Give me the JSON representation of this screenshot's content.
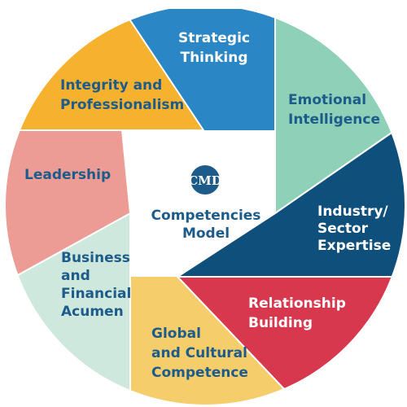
{
  "segments": [
    {
      "id": "strategic-thinking",
      "lines": [
        "Strategic",
        "Thinking"
      ],
      "color": "#2a86c4",
      "text_color": "#ffffff"
    },
    {
      "id": "emotional-intelligence",
      "lines": [
        "Emotional",
        "Intelligence"
      ],
      "color": "#8fd0b8",
      "text_color": "#1d5c8a"
    },
    {
      "id": "industry-sector-expertise",
      "lines": [
        "Industry/",
        "Sector",
        "Expertise"
      ],
      "color": "#0f4f7c",
      "text_color": "#ffffff"
    },
    {
      "id": "relationship-building",
      "lines": [
        "Relationship",
        "Building"
      ],
      "color": "#d7384e",
      "text_color": "#ffffff"
    },
    {
      "id": "global-cultural-competence",
      "lines": [
        "Global",
        "and Cultural",
        "Competence"
      ],
      "color": "#f6cd6b",
      "text_color": "#1d5c8a"
    },
    {
      "id": "business-financial-acumen",
      "lines": [
        "Business",
        "and",
        "Financial",
        "Acumen"
      ],
      "color": "#cfe8de",
      "text_color": "#1d5c8a"
    },
    {
      "id": "leadership",
      "lines": [
        "Leadership"
      ],
      "color": "#ec9c95",
      "text_color": "#1d5c8a"
    },
    {
      "id": "integrity-professionalism",
      "lines": [
        "Integrity and",
        "Professionalism"
      ],
      "color": "#f6b12f",
      "text_color": "#1d5c8a"
    }
  ],
  "center": {
    "logo_text": "CMD",
    "title_lines": [
      "Competencies",
      "Model"
    ],
    "logo_color": "#1d5c8a"
  }
}
